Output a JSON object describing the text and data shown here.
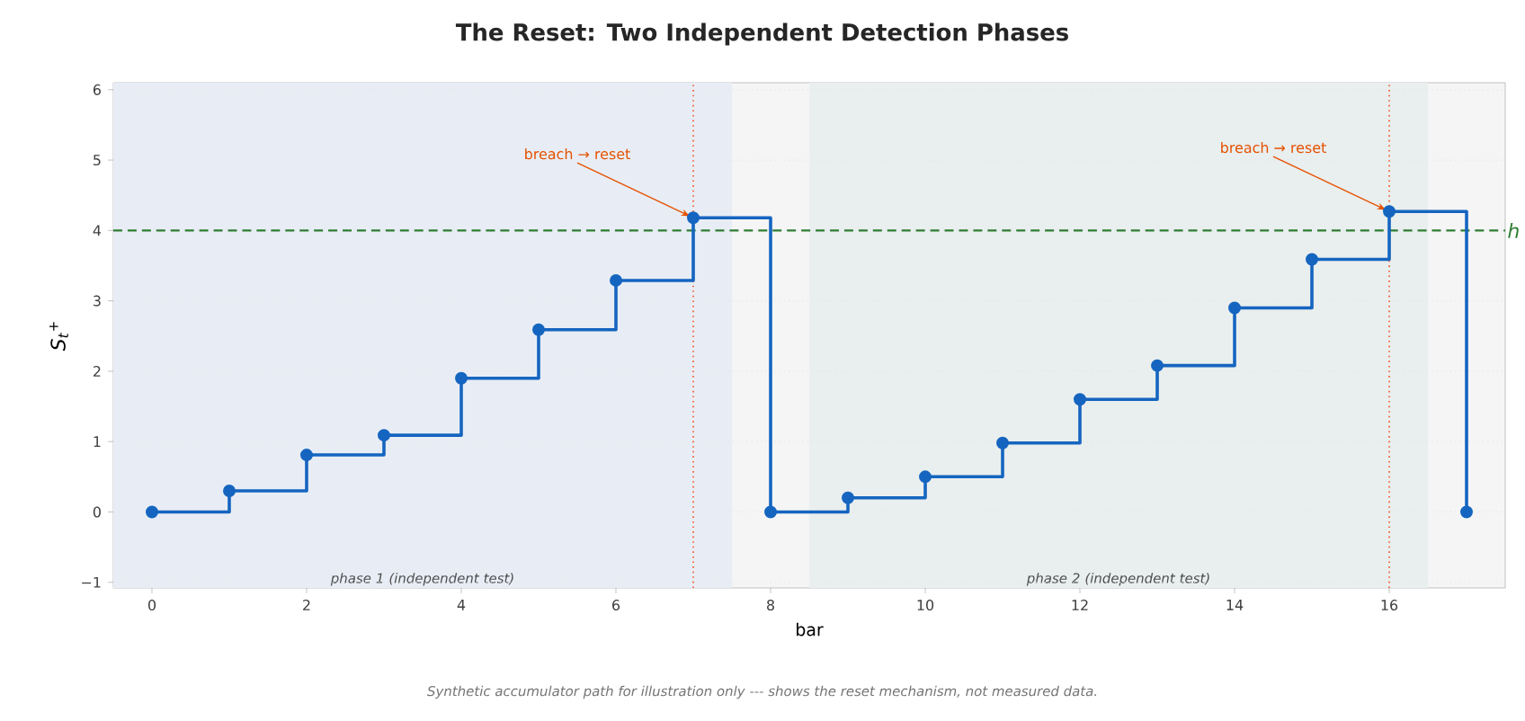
{
  "chart_data": {
    "type": "step",
    "title": "The Reset: Two Independent Detection Phases",
    "xlabel": "bar",
    "ylabel": "S$_{t}$$^{+}$",
    "x": [
      0,
      1,
      2,
      3,
      4,
      5,
      6,
      7,
      8,
      9,
      10,
      11,
      12,
      13,
      14,
      15,
      16,
      17
    ],
    "values": [
      0,
      0.3,
      0.81,
      1.09,
      1.9,
      2.59,
      3.29,
      4.18,
      0,
      0.2,
      0.5,
      0.98,
      1.6,
      2.08,
      2.9,
      3.59,
      4.27,
      0
    ],
    "color": "#1565c0",
    "marker": "circle",
    "xlim": [
      -0.5,
      17.5
    ],
    "ylim": [
      -1.08,
      6.1
    ],
    "xticks": [
      0,
      2,
      4,
      6,
      8,
      10,
      12,
      14,
      16
    ],
    "yticks": [
      {
        "value": -1,
        "label": "−1"
      },
      0,
      1,
      2,
      3,
      4,
      5,
      6
    ],
    "grid": "y",
    "ref_lines": [
      {
        "axis": "y",
        "value": 4,
        "label": "h",
        "color": "#2e7d32",
        "line_style": "dashed"
      },
      {
        "axis": "x",
        "value": 7,
        "color": "#f4511e",
        "line_style": "dotted"
      },
      {
        "axis": "x",
        "value": 16,
        "color": "#f4511e",
        "line_style": "dotted"
      }
    ],
    "bands": [
      {
        "axis": "x",
        "from": -0.5,
        "to": 7.5,
        "label": "phase 1 (independent test)",
        "color": "#e8edf5"
      },
      {
        "axis": "x",
        "from": 8.5,
        "to": 16.5,
        "label": "phase 2 (independent test)",
        "color": "#e9eeee"
      }
    ],
    "annotations": [
      {
        "text": "breach → reset",
        "x": 7,
        "y": 4.18
      },
      {
        "text": "breach → reset",
        "x": 16,
        "y": 4.27
      },
      "Synthetic accumulator path for illustration only --- shows the reset mechanism, not measured data."
    ]
  }
}
